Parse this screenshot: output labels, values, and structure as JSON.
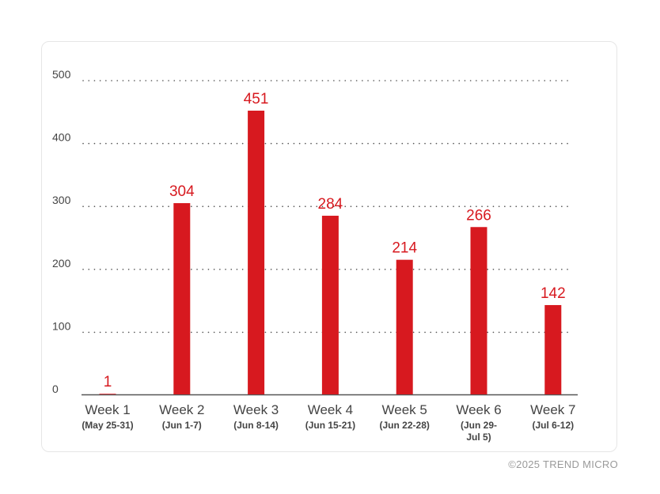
{
  "chart_data": {
    "type": "bar",
    "categories": [
      "Week 1",
      "Week 2",
      "Week 3",
      "Week 4",
      "Week 5",
      "Week 6",
      "Week 7"
    ],
    "category_subtitles": [
      [
        "(May 25-31)"
      ],
      [
        "(Jun 1-7)"
      ],
      [
        "(Jun 8-14)"
      ],
      [
        "(Jun 15-21)"
      ],
      [
        "(Jun 22-28)"
      ],
      [
        "(Jun 29-",
        "Jul 5)"
      ],
      [
        "(Jul 6-12)"
      ]
    ],
    "values": [
      1,
      304,
      451,
      284,
      214,
      266,
      142
    ],
    "data_labels": [
      "1",
      "304",
      "451",
      "284",
      "214",
      "266",
      "142"
    ],
    "yticks": [
      0,
      100,
      200,
      300,
      400,
      500
    ],
    "ylim": [
      0,
      500
    ],
    "grid": true,
    "bar_color": "#d7191f",
    "label_color": "#d7191f"
  },
  "credit": "©2025 TREND MICRO"
}
